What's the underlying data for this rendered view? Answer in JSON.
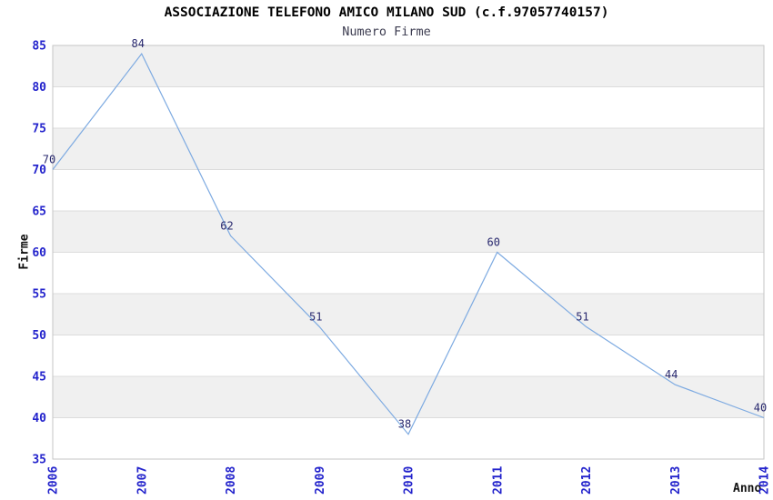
{
  "chart_data": {
    "type": "line",
    "title": "ASSOCIAZIONE TELEFONO AMICO MILANO SUD (c.f.97057740157)",
    "subtitle": "Numero Firme",
    "xlabel": "Anno",
    "ylabel": "Firme",
    "categories": [
      "2006",
      "2007",
      "2008",
      "2009",
      "2010",
      "2011",
      "2012",
      "2013",
      "2014"
    ],
    "values": [
      70,
      84,
      62,
      51,
      38,
      60,
      51,
      44,
      40
    ],
    "ylim": [
      35,
      85
    ],
    "ytick_step": 5,
    "grid": true,
    "legend_position": "none",
    "show_point_labels": true,
    "colors": {
      "line": "#7daae1",
      "tick_label": "#2323cc",
      "data_label": "#28286e",
      "band_gray": "#f0f0f0",
      "band_white": "#ffffff",
      "gridline": "#dcdcdc",
      "plot_border": "#c6c6c6",
      "title": "#000000",
      "subtitle": "#3c3c50",
      "background": "#ffffff"
    }
  }
}
